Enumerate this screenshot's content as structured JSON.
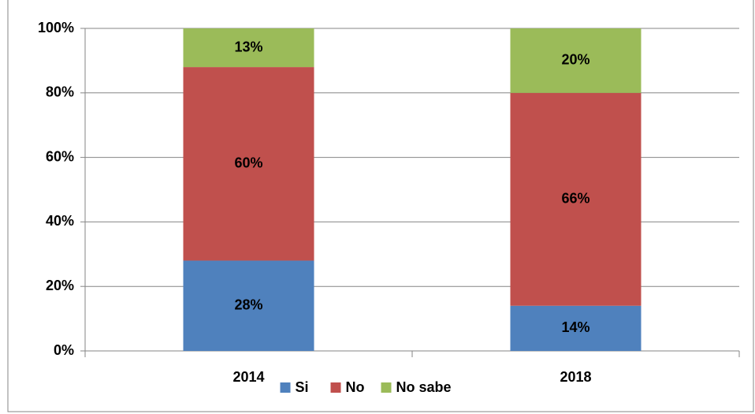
{
  "chart_data": {
    "type": "stacked_bar",
    "categories": [
      "2014",
      "2018"
    ],
    "series": [
      {
        "name": "Si",
        "color": "#4f81bd",
        "values": [
          28,
          14
        ],
        "value_labels": [
          "28%",
          "14%"
        ]
      },
      {
        "name": "No",
        "color": "#c0504d",
        "values": [
          60,
          66
        ],
        "value_labels": [
          "60%",
          "66%"
        ]
      },
      {
        "name": "No sabe",
        "color": "#9bbb59",
        "values": [
          13,
          20
        ],
        "value_labels": [
          "13%",
          "20%"
        ]
      }
    ],
    "ylim": [
      0,
      100
    ],
    "yticks": [
      {
        "value": 0,
        "label": "0%"
      },
      {
        "value": 20,
        "label": "20%"
      },
      {
        "value": 40,
        "label": "40%"
      },
      {
        "value": 60,
        "label": "60%"
      },
      {
        "value": 80,
        "label": "80%"
      },
      {
        "value": 100,
        "label": "100%"
      }
    ],
    "grid": true,
    "legend": "bottom"
  }
}
